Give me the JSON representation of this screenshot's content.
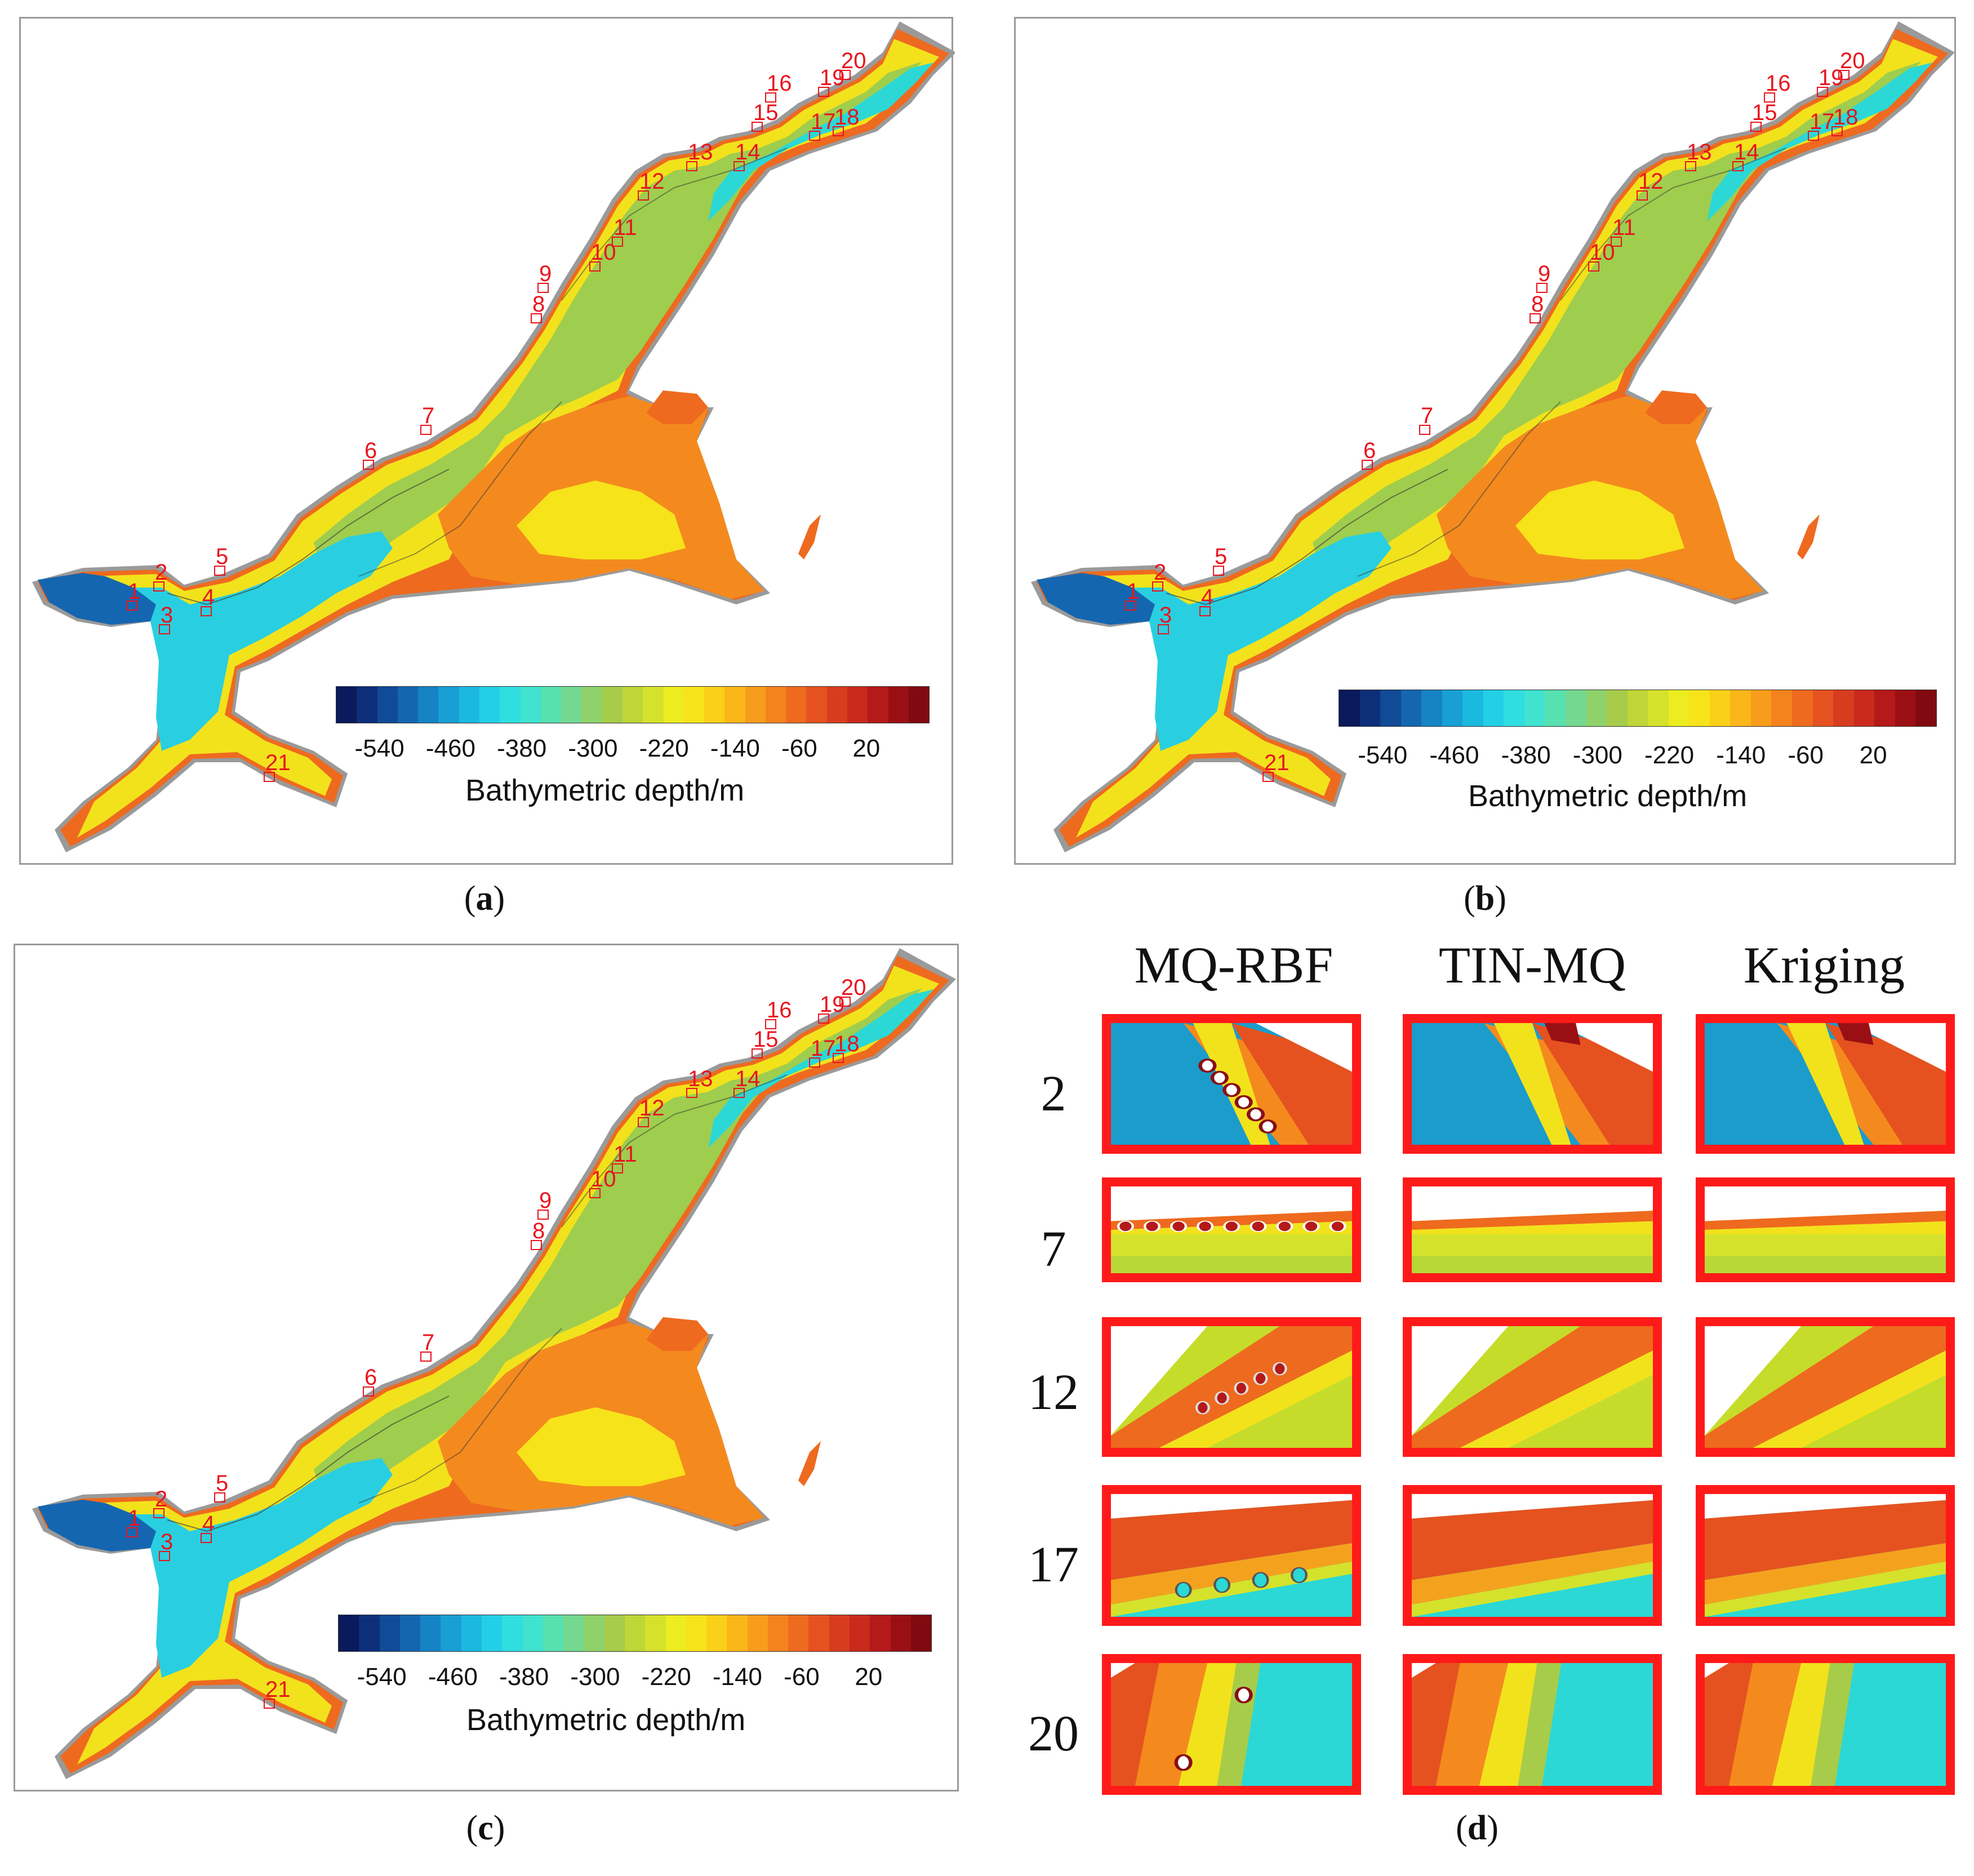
{
  "panels": [
    {
      "id": "a",
      "caption": "a",
      "points": [
        "1",
        "2",
        "3",
        "4",
        "5",
        "6",
        "7",
        "8",
        "9",
        "10",
        "11",
        "12",
        "13",
        "14",
        "15",
        "16",
        "17",
        "18",
        "19",
        "20",
        "21"
      ]
    },
    {
      "id": "b",
      "caption": "b",
      "points": [
        "1",
        "2",
        "3",
        "4",
        "5",
        "6",
        "7",
        "8",
        "9",
        "10",
        "11",
        "12",
        "13",
        "14",
        "15",
        "16",
        "17",
        "18",
        "19",
        "20",
        "21"
      ]
    },
    {
      "id": "c",
      "caption": "c",
      "points": [
        "1",
        "2",
        "3",
        "4",
        "5",
        "6",
        "7",
        "8",
        "9",
        "10",
        "11",
        "12",
        "13",
        "14",
        "15",
        "16",
        "17",
        "18",
        "19",
        "20",
        "21"
      ]
    }
  ],
  "colorbar": {
    "title": "Bathymetric depth/m",
    "ticks": [
      "-540",
      "-460",
      "-380",
      "-300",
      "-220",
      "-140",
      "-60",
      "20"
    ],
    "colors": [
      "#0a1a5c",
      "#0d2f7a",
      "#114a96",
      "#1466b0",
      "#1583c4",
      "#189fd3",
      "#1bb9e0",
      "#23cfe6",
      "#30dde0",
      "#3fe3cf",
      "#57e0b0",
      "#74d890",
      "#8fd26c",
      "#a7cc4a",
      "#bed637",
      "#d5e22c",
      "#ecec20",
      "#f7e31a",
      "#fbd018",
      "#fbb61a",
      "#f89c1c",
      "#f4831e",
      "#ee6a1f",
      "#e5521f",
      "#d83c1e",
      "#c92a1c",
      "#b31a19",
      "#9a0f14",
      "#800a10"
    ]
  },
  "comparison": {
    "caption": "d",
    "methods": [
      "MQ-RBF",
      "TIN-MQ",
      "Kriging"
    ],
    "rows": [
      "2",
      "7",
      "12",
      "17",
      "20"
    ]
  }
}
